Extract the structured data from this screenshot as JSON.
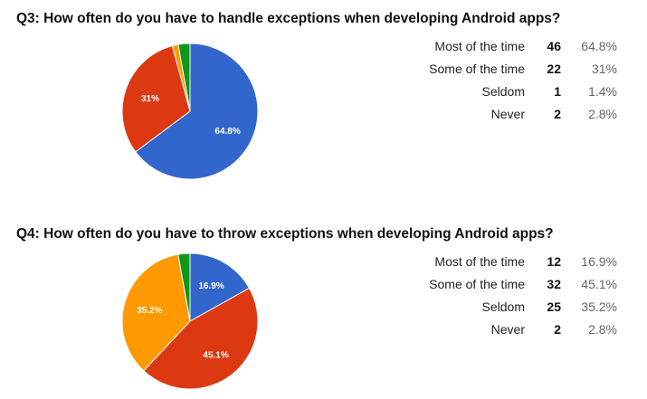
{
  "chart_data": [
    {
      "type": "pie",
      "title": "Q3: How often do you have to handle exceptions when developing Android apps?",
      "categories": [
        "Most of the time",
        "Some of the time",
        "Seldom",
        "Never"
      ],
      "values": [
        46,
        22,
        1,
        2
      ],
      "percent_labels": [
        "64.8%",
        "31%",
        "1.4%",
        "2.8%"
      ],
      "colors": [
        "#3366cc",
        "#dc3912",
        "#ff9900",
        "#109618"
      ],
      "slice_labels": [
        "64.8%",
        "31%",
        "",
        ""
      ],
      "start_angle_deg": 90,
      "order": [
        3,
        2,
        1,
        0
      ]
    },
    {
      "type": "pie",
      "title": "Q4: How often do you have to throw exceptions when developing Android apps?",
      "categories": [
        "Most of the time",
        "Some of the time",
        "Seldom",
        "Never"
      ],
      "values": [
        12,
        32,
        25,
        2
      ],
      "percent_labels": [
        "16.9%",
        "45.1%",
        "35.2%",
        "2.8%"
      ],
      "colors": [
        "#3366cc",
        "#dc3912",
        "#ff9900",
        "#109618"
      ],
      "slice_labels": [
        "16.9%",
        "45.1%",
        "35.2%",
        ""
      ],
      "start_angle_deg": 90,
      "order": [
        0,
        1,
        2,
        3
      ],
      "direction": -1
    }
  ]
}
